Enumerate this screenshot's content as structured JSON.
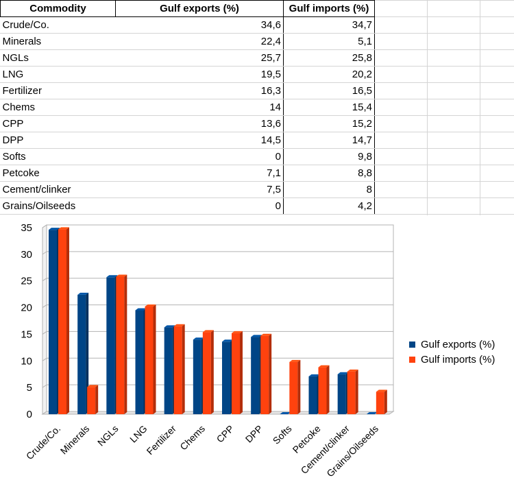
{
  "sheet": {
    "headers": [
      "Commodity",
      "Gulf exports (%)",
      "Gulf imports (%)"
    ],
    "rows": [
      [
        "Crude/Co.",
        "34,6",
        "34,7"
      ],
      [
        "Minerals",
        "22,4",
        "5,1"
      ],
      [
        "NGLs",
        "25,7",
        "25,8"
      ],
      [
        "LNG",
        "19,5",
        "20,2"
      ],
      [
        "Fertilizer",
        "16,3",
        "16,5"
      ],
      [
        "Chems",
        "14",
        "15,4"
      ],
      [
        "CPP",
        "13,6",
        "15,2"
      ],
      [
        "DPP",
        "14,5",
        "14,7"
      ],
      [
        "Softs",
        "0",
        "9,8"
      ],
      [
        "Petcoke",
        "7,1",
        "8,8"
      ],
      [
        "Cement/clinker",
        "7,5",
        "8"
      ],
      [
        "Grains/Oilseeds",
        "0",
        "4,2"
      ]
    ]
  },
  "chart_data": {
    "type": "bar",
    "categories": [
      "Crude/Co.",
      "Minerals",
      "NGLs",
      "LNG",
      "Fertilizer",
      "Chems",
      "CPP",
      "DPP",
      "Softs",
      "Petcoke",
      "Cement/clinker",
      "Grains/Oilseeds"
    ],
    "series": [
      {
        "name": "Gulf exports (%)",
        "color": "#004586",
        "values": [
          34.6,
          22.4,
          25.7,
          19.5,
          16.3,
          14,
          13.6,
          14.5,
          0,
          7.1,
          7.5,
          0
        ]
      },
      {
        "name": "Gulf imports (%)",
        "color": "#ff420e",
        "values": [
          34.7,
          5.1,
          25.8,
          20.2,
          16.5,
          15.4,
          15.2,
          14.7,
          9.8,
          8.8,
          8,
          4.2
        ]
      }
    ],
    "ylim": [
      0,
      35
    ],
    "yticks": [
      "0",
      "5",
      "10",
      "15",
      "20",
      "25",
      "30",
      "35"
    ],
    "grid": true,
    "legend_position": "right"
  }
}
